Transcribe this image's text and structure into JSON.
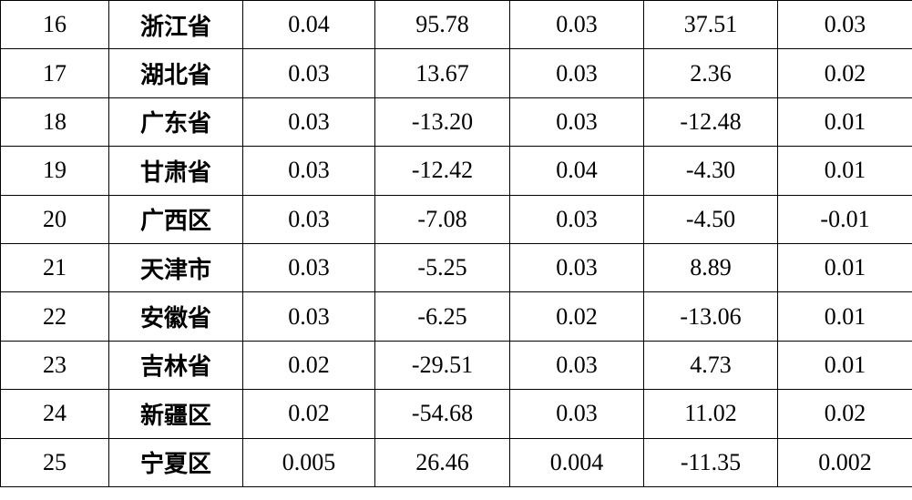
{
  "table": {
    "rows": [
      [
        "16",
        "浙江省",
        "0.04",
        "95.78",
        "0.03",
        "37.51",
        "0.03"
      ],
      [
        "17",
        "湖北省",
        "0.03",
        "13.67",
        "0.03",
        "2.36",
        "0.02"
      ],
      [
        "18",
        "广东省",
        "0.03",
        "-13.20",
        "0.03",
        "-12.48",
        "0.01"
      ],
      [
        "19",
        "甘肃省",
        "0.03",
        "-12.42",
        "0.04",
        "-4.30",
        "0.01"
      ],
      [
        "20",
        "广西区",
        "0.03",
        "-7.08",
        "0.03",
        "-4.50",
        "-0.01"
      ],
      [
        "21",
        "天津市",
        "0.03",
        "-5.25",
        "0.03",
        "8.89",
        "0.01"
      ],
      [
        "22",
        "安徽省",
        "0.03",
        "-6.25",
        "0.02",
        "-13.06",
        "0.01"
      ],
      [
        "23",
        "吉林省",
        "0.02",
        "-29.51",
        "0.03",
        "4.73",
        "0.01"
      ],
      [
        "24",
        "新疆区",
        "0.02",
        "-54.68",
        "0.03",
        "11.02",
        "0.02"
      ],
      [
        "25",
        "宁夏区",
        "0.005",
        "26.46",
        "0.004",
        "-11.35",
        "0.002"
      ]
    ]
  }
}
